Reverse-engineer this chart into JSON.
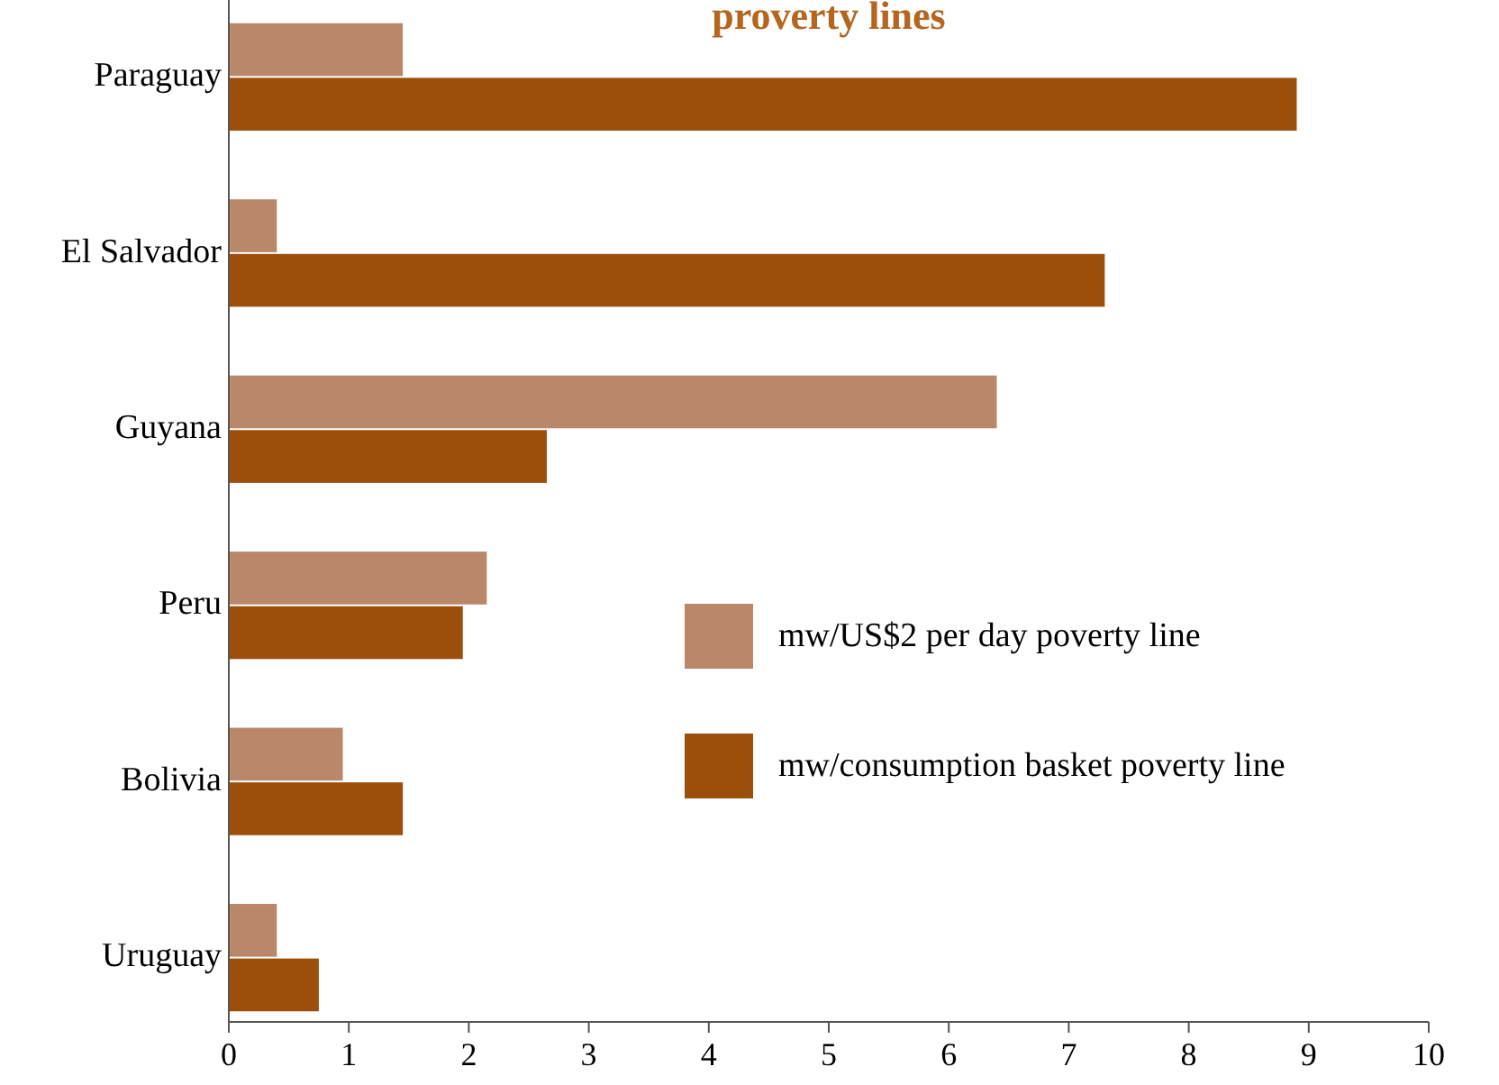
{
  "chart_data": {
    "type": "bar",
    "orientation": "horizontal",
    "title": "proverty lines",
    "categories": [
      "Paraguay",
      "El Salvador",
      "Guyana",
      "Peru",
      "Bolivia",
      "Uruguay"
    ],
    "series": [
      {
        "name": "mw/US$2 per day poverty line",
        "color": "#b9876a",
        "values": [
          1.45,
          0.4,
          6.4,
          2.15,
          0.95,
          0.4
        ]
      },
      {
        "name": "mw/consumption basket poverty line",
        "color": "#9c4f0b",
        "values": [
          8.9,
          7.3,
          2.65,
          1.95,
          1.45,
          0.75
        ]
      }
    ],
    "xlim": [
      0,
      10
    ],
    "xticks": [
      0,
      1,
      2,
      3,
      4,
      5,
      6,
      7,
      8,
      9,
      10
    ],
    "legend": "right",
    "grid": false
  }
}
